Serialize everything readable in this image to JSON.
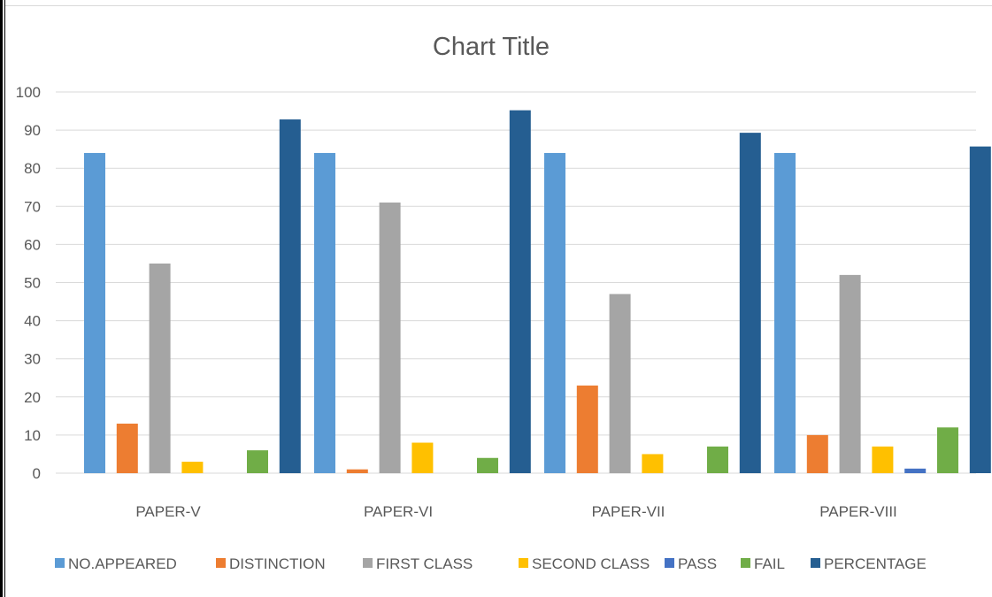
{
  "chart_data": {
    "type": "bar",
    "title": "Chart Title",
    "categories": [
      "PAPER-V",
      "PAPER-VI",
      "PAPER-VII",
      "PAPER-VIII"
    ],
    "ylim": [
      0,
      100
    ],
    "yticks": [
      0,
      10,
      20,
      30,
      40,
      50,
      60,
      70,
      80,
      90,
      100
    ],
    "grid": true,
    "legend_position": "bottom",
    "series": [
      {
        "name": "NO.APPEARED",
        "color": "#5B9BD5",
        "values": [
          84,
          84,
          84,
          84
        ]
      },
      {
        "name": "DISTINCTION",
        "color": "#ED7D31",
        "values": [
          13,
          1,
          23,
          10
        ]
      },
      {
        "name": "FIRST CLASS",
        "color": "#A5A5A5",
        "values": [
          55,
          71,
          47,
          52
        ]
      },
      {
        "name": "SECOND CLASS",
        "color": "#FFC000",
        "values": [
          3,
          8,
          5,
          7
        ]
      },
      {
        "name": "PASS",
        "color": "#4472C4",
        "values": [
          0,
          0,
          0,
          1.2
        ]
      },
      {
        "name": "FAIL",
        "color": "#70AD47",
        "values": [
          6,
          4,
          7,
          12
        ]
      },
      {
        "name": "PERCENTAGE",
        "color": "#255E91",
        "values": [
          92.8,
          95.2,
          89.3,
          85.7
        ]
      }
    ]
  }
}
